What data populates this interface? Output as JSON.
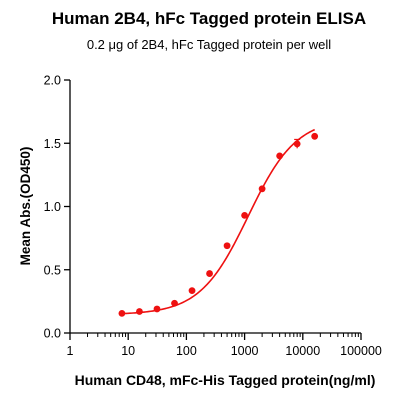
{
  "chart_data": {
    "type": "scatter",
    "title": "Human 2B4, hFc Tagged protein ELISA",
    "subtitle": "0.2 μg of 2B4, hFc Tagged protein per well",
    "xlabel": "Human CD48, mFc-His Tagged protein(ng/ml)",
    "ylabel": "Mean Abs.(OD450)",
    "xscale": "log",
    "xlim": [
      1,
      100000
    ],
    "ylim": [
      0,
      2.0
    ],
    "xticks": [
      1,
      10,
      100,
      1000,
      10000,
      100000
    ],
    "xtick_labels": [
      "1",
      "10",
      "100",
      "1000",
      "10000",
      "100000"
    ],
    "yticks": [
      0,
      0.5,
      1.0,
      1.5,
      2.0
    ],
    "ytick_labels": [
      "0.0",
      "0.5",
      "1.0",
      "1.5",
      "2.0"
    ],
    "grid": false,
    "color": "#ee1111",
    "series": [
      {
        "x": [
          7.8,
          15.6,
          31.25,
          62.5,
          125,
          250,
          500,
          1000,
          2000,
          4000,
          8000,
          16000
        ],
        "y": [
          0.155,
          0.17,
          0.19,
          0.235,
          0.335,
          0.47,
          0.69,
          0.93,
          1.14,
          1.4,
          1.495,
          1.555
        ],
        "err": [
          0,
          0,
          0,
          0,
          0,
          0,
          0,
          0,
          0,
          0,
          0.035,
          0
        ]
      }
    ]
  }
}
